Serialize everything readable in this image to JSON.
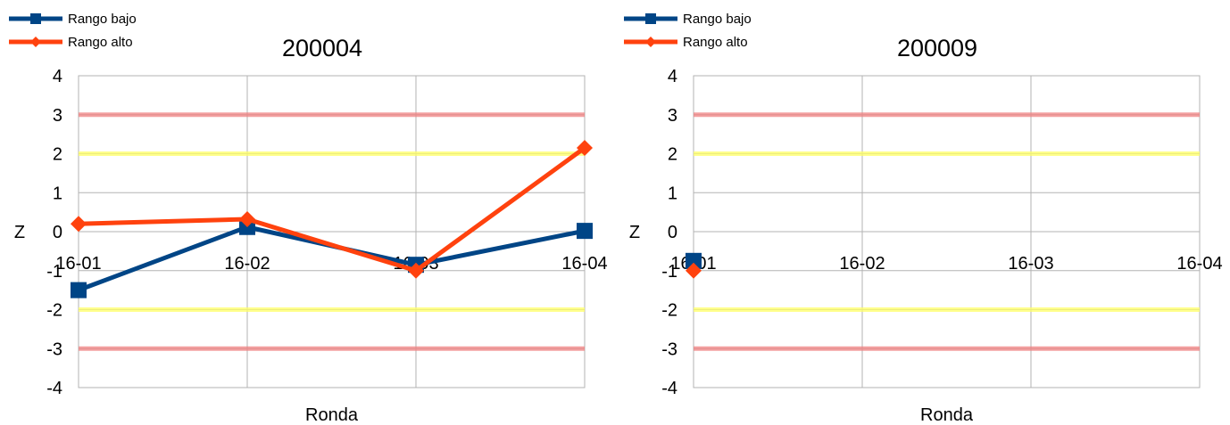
{
  "chart_data": [
    {
      "type": "line",
      "title": "200004",
      "xlabel": "Ronda",
      "ylabel": "Z",
      "categories": [
        "16-01",
        "16-02",
        "16-03",
        "16-04"
      ],
      "ylim": [
        -4,
        4
      ],
      "yticks": [
        "4",
        "3",
        "2",
        "1",
        "0",
        "-1",
        "-2",
        "-3",
        "-4"
      ],
      "grid": true,
      "legend_position": "top-left",
      "reference_lines": [
        {
          "y": 3,
          "color": "#f08080"
        },
        {
          "y": 2,
          "color": "#ffff66"
        },
        {
          "y": -2,
          "color": "#ffff66"
        },
        {
          "y": -3,
          "color": "#f08080"
        }
      ],
      "series": [
        {
          "name": "Rango bajo",
          "color": "#004586",
          "marker": "square",
          "values": [
            -1.5,
            0.12,
            -0.85,
            0.02
          ]
        },
        {
          "name": "Rango alto",
          "color": "#ff420e",
          "marker": "diamond",
          "values": [
            0.2,
            0.32,
            -1.0,
            2.15
          ]
        }
      ]
    },
    {
      "type": "line",
      "title": "200009",
      "xlabel": "Ronda",
      "ylabel": "Z",
      "categories": [
        "16-01",
        "16-02",
        "16-03",
        "16-04"
      ],
      "ylim": [
        -4,
        4
      ],
      "yticks": [
        "4",
        "3",
        "2",
        "1",
        "0",
        "-1",
        "-2",
        "-3",
        "-4"
      ],
      "grid": true,
      "legend_position": "top-left",
      "reference_lines": [
        {
          "y": 3,
          "color": "#f08080"
        },
        {
          "y": 2,
          "color": "#ffff66"
        },
        {
          "y": -2,
          "color": "#ffff66"
        },
        {
          "y": -3,
          "color": "#f08080"
        }
      ],
      "series": [
        {
          "name": "Rango bajo",
          "color": "#004586",
          "marker": "square",
          "values": [
            -0.75,
            null,
            null,
            null
          ]
        },
        {
          "name": "Rango alto",
          "color": "#ff420e",
          "marker": "diamond",
          "values": [
            -1.0,
            null,
            null,
            null
          ]
        }
      ]
    }
  ]
}
